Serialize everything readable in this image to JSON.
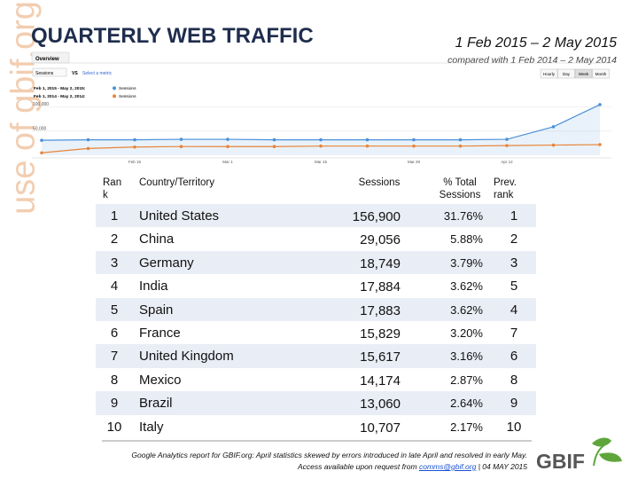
{
  "side_text": "use of gbif.org",
  "header": {
    "title": "QUARTERLY WEB TRAFFIC",
    "date_range": "1 Feb 2015 – 2 May 2015",
    "comparison": "compared with 1 Feb 2014 – 2 May 2014"
  },
  "analytics_ui": {
    "tab": "Overview",
    "metric": "Sessions",
    "vs": "VS",
    "select": "Select a metric",
    "buttons": [
      "Hourly",
      "Day",
      "Week",
      "Month"
    ]
  },
  "chart_data": {
    "type": "line",
    "categories": [
      null,
      null,
      "Feb 15",
      null,
      "Mar 1",
      null,
      "Mar 15",
      null,
      "Mar 29",
      null,
      "Apr 12",
      null,
      null
    ],
    "series": [
      {
        "name": "Sessions",
        "period": "Feb 1, 2015 - May 2, 2015:",
        "color": "#4a90d9",
        "values": [
          31000,
          32000,
          32000,
          33000,
          33000,
          32000,
          32000,
          32000,
          32000,
          32000,
          33000,
          59000,
          105000
        ]
      },
      {
        "name": "Sessions",
        "period": "Feb 1, 2014 - May 2, 2014:",
        "color": "#e8843a",
        "values": [
          5000,
          14000,
          17000,
          18000,
          18000,
          18000,
          19000,
          19000,
          19000,
          19000,
          20000,
          21000,
          22000
        ]
      }
    ],
    "ylim": [
      0,
      160000
    ],
    "yticks": [
      {
        "value": 50000,
        "label": "50,000"
      },
      {
        "value": 100000,
        "label": "100,000"
      }
    ],
    "grid": true
  },
  "table": {
    "columns": [
      "Rank",
      "Country/Territory",
      "Sessions",
      "% Total Sessions",
      "Prev. rank"
    ],
    "rows": [
      [
        "1",
        "United States",
        "156,900",
        "31.76%",
        "1"
      ],
      [
        "2",
        "China",
        "29,056",
        "5.88%",
        "2"
      ],
      [
        "3",
        "Germany",
        "18,749",
        "3.79%",
        "3"
      ],
      [
        "4",
        "India",
        "17,884",
        "3.62%",
        "5"
      ],
      [
        "5",
        "Spain",
        "17,883",
        "3.62%",
        "4"
      ],
      [
        "6",
        "France",
        "15,829",
        "3.20%",
        "7"
      ],
      [
        "7",
        "United Kingdom",
        "15,617",
        "3.16%",
        "6"
      ],
      [
        "8",
        "Mexico",
        "14,174",
        "2.87%",
        "8"
      ],
      [
        "9",
        "Brazil",
        "13,060",
        "2.64%",
        "9"
      ],
      [
        "10",
        "Italy",
        "10,707",
        "2.17%",
        "10"
      ]
    ]
  },
  "footer": {
    "line1": "Google Analytics report for GBIF.org: April statistics skewed by errors introduced in late April and resolved in early May.",
    "line2_prefix": "Access available upon request from ",
    "email": "comms@gbif.org",
    "line2_suffix": " | 04 MAY 2015",
    "logo": "GBIF"
  }
}
